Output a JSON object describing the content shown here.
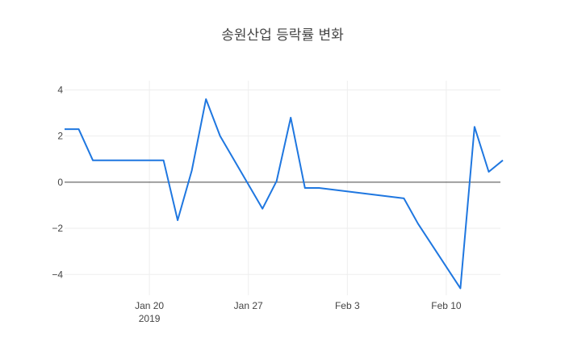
{
  "chart_data": {
    "type": "line",
    "title": "송원산업 등락률 변화",
    "xlabel": "",
    "ylabel": "",
    "x_start": "2019-01-14",
    "x_end": "2019-02-13",
    "ylim": [
      -4.9,
      4.4
    ],
    "yticks": [
      -4,
      -2,
      0,
      2,
      4
    ],
    "ytick_labels": [
      "−4",
      "−2",
      "0",
      "2",
      "4"
    ],
    "xticks": [
      {
        "date": "2019-01-20",
        "label": "Jan 20",
        "sublabel": "2019"
      },
      {
        "date": "2019-01-27",
        "label": "Jan 27",
        "sublabel": ""
      },
      {
        "date": "2019-02-03",
        "label": "Feb 3",
        "sublabel": ""
      },
      {
        "date": "2019-02-10",
        "label": "Feb 10",
        "sublabel": ""
      }
    ],
    "grid": true,
    "zero_line": true,
    "line_color": "#1f77e0",
    "series": [
      {
        "x": [
          "2019-01-14",
          "2019-01-15",
          "2019-01-16",
          "2019-01-17",
          "2019-01-18",
          "2019-01-21",
          "2019-01-22",
          "2019-01-23",
          "2019-01-24",
          "2019-01-25",
          "2019-01-28",
          "2019-01-29",
          "2019-01-30",
          "2019-01-31",
          "2019-02-01",
          "2019-02-07",
          "2019-02-08",
          "2019-02-11",
          "2019-02-12",
          "2019-02-13",
          "2019-02-14"
        ],
        "y": [
          2.3,
          2.3,
          0.95,
          0.95,
          0.95,
          0.95,
          -1.65,
          0.5,
          3.6,
          2.0,
          -1.15,
          0.05,
          2.8,
          -0.25,
          -0.25,
          -0.7,
          -1.8,
          -4.6,
          2.4,
          0.45,
          0.95
        ]
      }
    ]
  }
}
